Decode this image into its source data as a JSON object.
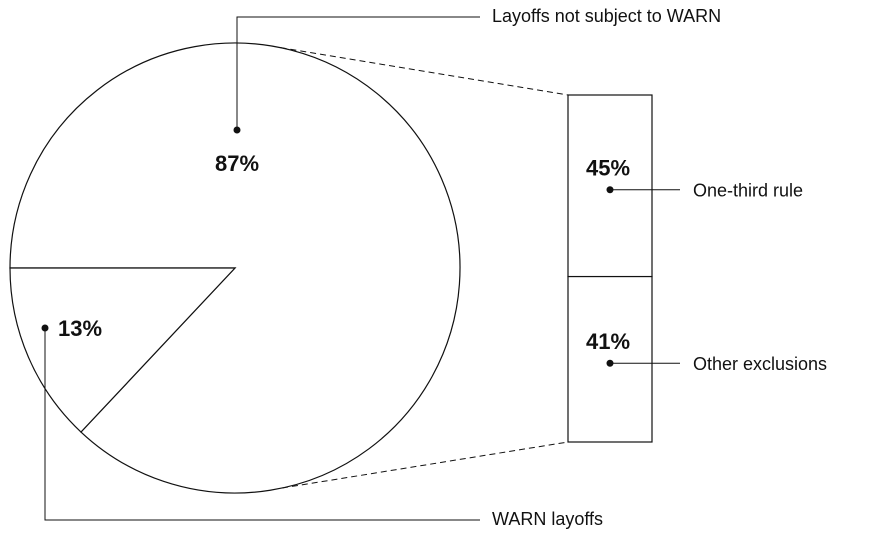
{
  "chart_data": {
    "type": "pie",
    "categories": [
      "Layoffs not subject to WARN",
      "WARN layoffs"
    ],
    "values": [
      87,
      13
    ],
    "value_labels": [
      "87%",
      "13%"
    ],
    "color": "#ffffff",
    "breakdown": {
      "type": "bar",
      "categories": [
        "One-third rule",
        "Other exclusions"
      ],
      "values": [
        45,
        41
      ],
      "value_labels": [
        "45%",
        "41%"
      ]
    }
  }
}
